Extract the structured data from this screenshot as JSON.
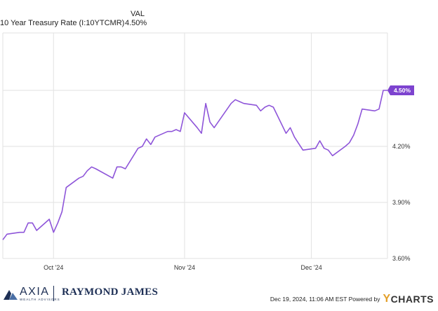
{
  "legend": {
    "series_name": "10 Year Treasury Rate (I:10YTCMR)",
    "val_header": "VAL",
    "val_value": "4.50%"
  },
  "last_value_badge": "4.50%",
  "colors": {
    "line": "#8e55d9",
    "badge": "#7d43cf",
    "grid": "#e2e2e2",
    "brand_navy": "#1d2f55",
    "ycharts_accent": "#e3a02a"
  },
  "chart_data": {
    "type": "line",
    "title": "",
    "xlabel": "",
    "ylabel": "",
    "x_start": "2024-09-19",
    "x_end": "2024-12-19",
    "x_ticks": [
      {
        "date": "2024-10-01",
        "label": "Oct '24"
      },
      {
        "date": "2024-11-01",
        "label": "Nov '24"
      },
      {
        "date": "2024-12-01",
        "label": "Dec '24"
      }
    ],
    "y_ticks": [
      {
        "value": 3.6,
        "label": "3.60%"
      },
      {
        "value": 3.9,
        "label": "3.90%"
      },
      {
        "value": 4.2,
        "label": "4.20%"
      }
    ],
    "ylim": [
      3.6,
      4.5
    ],
    "grid": true,
    "series": [
      {
        "name": "10 Year Treasury Rate (I:10YTCMR)",
        "points": [
          [
            "2024-09-19",
            3.7
          ],
          [
            "2024-09-20",
            3.73
          ],
          [
            "2024-09-23",
            3.74
          ],
          [
            "2024-09-24",
            3.74
          ],
          [
            "2024-09-25",
            3.79
          ],
          [
            "2024-09-26",
            3.79
          ],
          [
            "2024-09-27",
            3.75
          ],
          [
            "2024-09-30",
            3.81
          ],
          [
            "2024-10-01",
            3.74
          ],
          [
            "2024-10-02",
            3.79
          ],
          [
            "2024-10-03",
            3.85
          ],
          [
            "2024-10-04",
            3.98
          ],
          [
            "2024-10-07",
            4.03
          ],
          [
            "2024-10-08",
            4.04
          ],
          [
            "2024-10-09",
            4.07
          ],
          [
            "2024-10-10",
            4.09
          ],
          [
            "2024-10-11",
            4.08
          ],
          [
            "2024-10-15",
            4.03
          ],
          [
            "2024-10-16",
            4.09
          ],
          [
            "2024-10-17",
            4.09
          ],
          [
            "2024-10-18",
            4.08
          ],
          [
            "2024-10-21",
            4.19
          ],
          [
            "2024-10-22",
            4.2
          ],
          [
            "2024-10-23",
            4.24
          ],
          [
            "2024-10-24",
            4.21
          ],
          [
            "2024-10-25",
            4.25
          ],
          [
            "2024-10-28",
            4.28
          ],
          [
            "2024-10-29",
            4.28
          ],
          [
            "2024-10-30",
            4.29
          ],
          [
            "2024-10-31",
            4.28
          ],
          [
            "2024-11-01",
            4.38
          ],
          [
            "2024-11-04",
            4.3
          ],
          [
            "2024-11-05",
            4.27
          ],
          [
            "2024-11-06",
            4.43
          ],
          [
            "2024-11-07",
            4.33
          ],
          [
            "2024-11-08",
            4.3
          ],
          [
            "2024-11-12",
            4.43
          ],
          [
            "2024-11-13",
            4.45
          ],
          [
            "2024-11-14",
            4.44
          ],
          [
            "2024-11-15",
            4.43
          ],
          [
            "2024-11-18",
            4.42
          ],
          [
            "2024-11-19",
            4.39
          ],
          [
            "2024-11-20",
            4.41
          ],
          [
            "2024-11-21",
            4.42
          ],
          [
            "2024-11-22",
            4.41
          ],
          [
            "2024-11-25",
            4.27
          ],
          [
            "2024-11-26",
            4.3
          ],
          [
            "2024-11-27",
            4.25
          ],
          [
            "2024-11-29",
            4.18
          ],
          [
            "2024-12-02",
            4.19
          ],
          [
            "2024-12-03",
            4.23
          ],
          [
            "2024-12-04",
            4.19
          ],
          [
            "2024-12-05",
            4.18
          ],
          [
            "2024-12-06",
            4.15
          ],
          [
            "2024-12-09",
            4.2
          ],
          [
            "2024-12-10",
            4.22
          ],
          [
            "2024-12-11",
            4.26
          ],
          [
            "2024-12-12",
            4.32
          ],
          [
            "2024-12-13",
            4.4
          ],
          [
            "2024-12-16",
            4.39
          ],
          [
            "2024-12-17",
            4.4
          ],
          [
            "2024-12-18",
            4.5
          ],
          [
            "2024-12-19",
            4.5
          ]
        ]
      }
    ]
  },
  "footer": {
    "axia_name": "AXIA",
    "axia_tagline": "WEALTH ADVISORS",
    "raymond_james": "RAYMOND JAMES",
    "timestamp": "Dec 19, 2024, 11:06 AM EST Powered by",
    "ycharts": "CHARTS"
  }
}
